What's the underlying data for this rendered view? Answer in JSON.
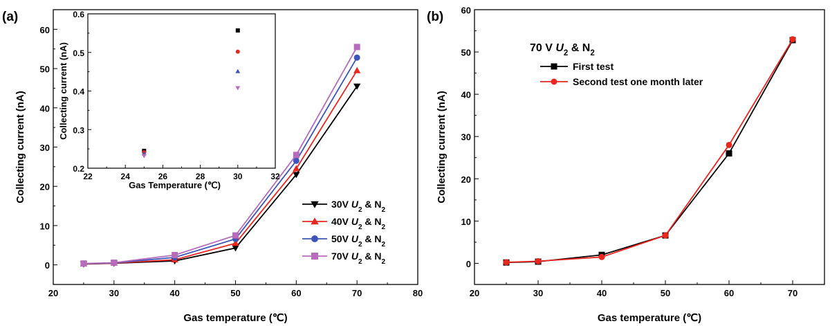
{
  "chart_data": [
    {
      "type": "line",
      "panel_label": "(a)",
      "xlabel": "Gas temperature (℃)",
      "ylabel": "Collecting current (nA)",
      "xlim": [
        20,
        80
      ],
      "ylim": [
        -5,
        65
      ],
      "xticks": [
        "20",
        "30",
        "40",
        "50",
        "60",
        "70",
        "80"
      ],
      "yticks": [
        "0",
        "10",
        "20",
        "30",
        "40",
        "50",
        "60"
      ],
      "legend_position": "bottom-right",
      "x": [
        25,
        30,
        40,
        50,
        60,
        70
      ],
      "series": [
        {
          "name": "30V U₂ & N₂",
          "prefix": "30V ",
          "ital": "U",
          "sub1": "2",
          "mid": " & N",
          "sub2": "2",
          "color": "#000000",
          "marker": "triangle-down",
          "values": [
            0.2,
            0.4,
            1.0,
            4.3,
            23.0,
            45.5
          ]
        },
        {
          "name": "40V U₂ & N₂",
          "prefix": "40V ",
          "ital": "U",
          "sub1": "2",
          "mid": " & N",
          "sub2": "2",
          "color": "#e8271f",
          "marker": "triangle-up",
          "values": [
            0.25,
            0.45,
            1.3,
            5.5,
            24.5,
            49.5
          ]
        },
        {
          "name": "50V U₂ & N₂",
          "prefix": "50V ",
          "ital": "U",
          "sub1": "2",
          "mid": " & N",
          "sub2": "2",
          "color": "#3d55b8",
          "marker": "circle",
          "values": [
            0.3,
            0.5,
            1.9,
            6.6,
            26.5,
            52.8
          ]
        },
        {
          "name": "70V U₂ & N₂",
          "prefix": "70V ",
          "ital": "U",
          "sub1": "2",
          "mid": " & N",
          "sub2": "2",
          "color": "#b66bbb",
          "marker": "square",
          "values": [
            0.35,
            0.55,
            2.5,
            7.5,
            28.0,
            55.5
          ]
        }
      ],
      "inset": {
        "type": "scatter",
        "xlabel": "Gas Temperature (℃)",
        "ylabel": "Collecting current (nA)",
        "xlim": [
          22,
          32
        ],
        "ylim": [
          0.2,
          0.6
        ],
        "xticks": [
          "22",
          "24",
          "26",
          "28",
          "30",
          "32"
        ],
        "yticks": [
          "0.2",
          "0.3",
          "0.4",
          "0.5",
          "0.6"
        ],
        "x": [
          25,
          30
        ],
        "series": [
          {
            "color": "#000000",
            "marker": "square",
            "values": [
              0.245,
              0.557
            ]
          },
          {
            "color": "#e8271f",
            "marker": "circle",
            "values": [
              0.241,
              0.502
            ]
          },
          {
            "color": "#3d55b8",
            "marker": "triangle-up",
            "values": [
              0.238,
              0.451
            ]
          },
          {
            "color": "#b66bbb",
            "marker": "triangle-down",
            "values": [
              0.232,
              0.408
            ]
          }
        ]
      }
    },
    {
      "type": "line",
      "panel_label": "(b)",
      "xlabel": "Gas temperature (℃)",
      "ylabel": "Collecting current (nA)",
      "xlim": [
        20,
        75
      ],
      "ylim": [
        -5,
        60
      ],
      "xticks": [
        "20",
        "30",
        "40",
        "50",
        "60",
        "70"
      ],
      "yticks": [
        "0",
        "10",
        "20",
        "30",
        "40",
        "50",
        "60"
      ],
      "legend_position": "top-left",
      "legend_title": {
        "prefix": "70 V ",
        "ital": "U",
        "sub1": "2",
        "mid": " & N",
        "sub2": "2"
      },
      "x": [
        25,
        30,
        40,
        50,
        60,
        70
      ],
      "series": [
        {
          "name": "First test",
          "color": "#000000",
          "marker": "square",
          "values": [
            0.2,
            0.4,
            2.0,
            6.6,
            26.0,
            52.8
          ]
        },
        {
          "name": "Second test one month later",
          "color": "#e8271f",
          "marker": "circle",
          "values": [
            0.25,
            0.5,
            1.5,
            6.6,
            28.0,
            53.0
          ]
        }
      ]
    }
  ]
}
